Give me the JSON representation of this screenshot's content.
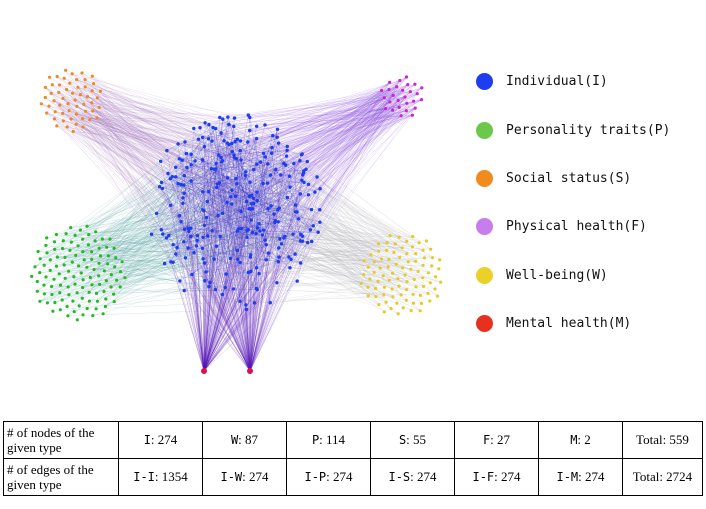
{
  "legend": [
    {
      "label": "Individual(I)",
      "color": "#1e3cf0"
    },
    {
      "label": "Personality traits(P)",
      "color": "#6cc84a"
    },
    {
      "label": "Social status(S)",
      "color": "#f08c1e"
    },
    {
      "label": "Physical health(F)",
      "color": "#c77dec"
    },
    {
      "label": "Well-being(W)",
      "color": "#ecd02a"
    },
    {
      "label": "Mental health(M)",
      "color": "#e8301e"
    }
  ],
  "table": {
    "row1_header": "# of nodes of the given type",
    "row1": [
      {
        "prefix": "I",
        "value": ": 274"
      },
      {
        "prefix": "W",
        "value": ": 87"
      },
      {
        "prefix": "P",
        "value": ": 114"
      },
      {
        "prefix": "S",
        "value": ": 55"
      },
      {
        "prefix": "F",
        "value": ": 27"
      },
      {
        "prefix": "M",
        "value": ": 2"
      }
    ],
    "row1_total": "Total: 559",
    "row2_header": "# of edges of the given type",
    "row2": [
      {
        "prefix": "I-I",
        "value": ": 1354"
      },
      {
        "prefix": "I-W",
        "value": ": 274"
      },
      {
        "prefix": "I-P",
        "value": ": 274"
      },
      {
        "prefix": "I-S",
        "value": ": 274"
      },
      {
        "prefix": "I-F",
        "value": ": 274"
      },
      {
        "prefix": "I-M",
        "value": ": 274"
      }
    ],
    "row2_total": "Total: 2724"
  },
  "graph": {
    "node_counts": {
      "I": 274,
      "P": 114,
      "S": 55,
      "F": 27,
      "W": 87,
      "M": 2
    },
    "colors": {
      "I": "#1e3cf0",
      "P": "#22bb22",
      "S": "#ee8a20",
      "F": "#cc22dd",
      "W": "#e6cc22",
      "M": "#dd1144",
      "edge_IP": "#4a9a9a",
      "edge_IS": "#9a6ab8",
      "edge_IF": "#8a4ae0",
      "edge_IW": "#9a9aa8",
      "edge_IM": "#5a1ab8",
      "edge_II": "#2a2ad0"
    }
  }
}
